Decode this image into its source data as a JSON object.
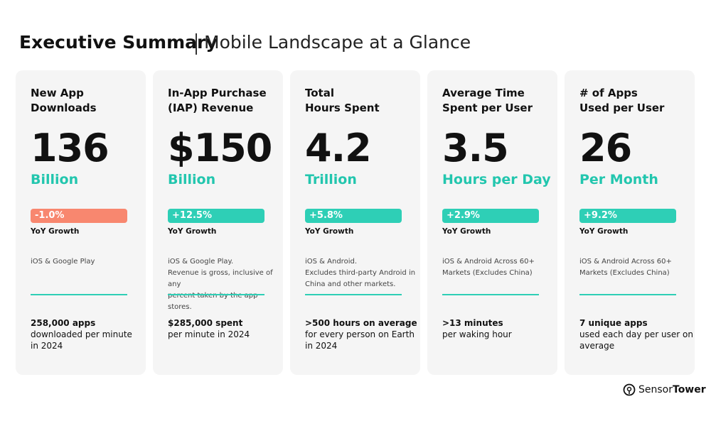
{
  "header": {
    "title": "Executive Summary",
    "subtitle": "Mobile Landscape at a Glance"
  },
  "cards": [
    {
      "title": [
        "New App",
        "Downloads"
      ],
      "value": "136",
      "unit": "Billion",
      "growth": "-1.0%",
      "growth_color": "#f8876f",
      "growth_label": "YoY Growth",
      "note": [
        "iOS & Google Play"
      ],
      "footer_bold": "258,000 apps",
      "footer": [
        "downloaded per minute",
        "in 2024"
      ]
    },
    {
      "title": [
        "In-App Purchase",
        "(IAP) Revenue"
      ],
      "value": "$150",
      "unit": "Billion",
      "growth": "+12.5%",
      "growth_color": "#2ecfb6",
      "growth_label": "YoY Growth",
      "note": [
        "iOS & Google Play.",
        "Revenue is gross, inclusive of any",
        "percent taken by the app stores."
      ],
      "footer_bold": "$285,000 spent",
      "footer": [
        "per minute in 2024"
      ]
    },
    {
      "title": [
        "Total",
        "Hours Spent"
      ],
      "value": "4.2",
      "unit": "Trillion",
      "growth": "+5.8%",
      "growth_color": "#2ecfb6",
      "growth_label": "YoY Growth",
      "note": [
        "iOS & Android.",
        "Excludes third-party Android in",
        "China and other markets."
      ],
      "footer_bold": ">500 hours on average",
      "footer": [
        "for every person on Earth",
        "in 2024"
      ]
    },
    {
      "title": [
        "Average Time",
        "Spent per User"
      ],
      "value": "3.5",
      "unit": "Hours per Day",
      "growth": "+2.9%",
      "growth_color": "#2ecfb6",
      "growth_label": "YoY Growth",
      "note": [
        "iOS & Android Across 60+",
        "Markets (Excludes China)"
      ],
      "footer_bold": ">13 minutes",
      "footer": [
        "per waking hour"
      ]
    },
    {
      "title": [
        "# of Apps",
        "Used per User"
      ],
      "value": "26",
      "unit": "Per Month",
      "growth": "+9.2%",
      "growth_color": "#2ecfb6",
      "growth_label": "YoY Growth",
      "note": [
        "iOS & Android Across 60+",
        "Markets (Excludes China)"
      ],
      "footer_bold": "7 unique apps",
      "footer": [
        "used each day per user on",
        "average"
      ]
    }
  ],
  "brand": [
    "Sensor",
    "Tower"
  ]
}
